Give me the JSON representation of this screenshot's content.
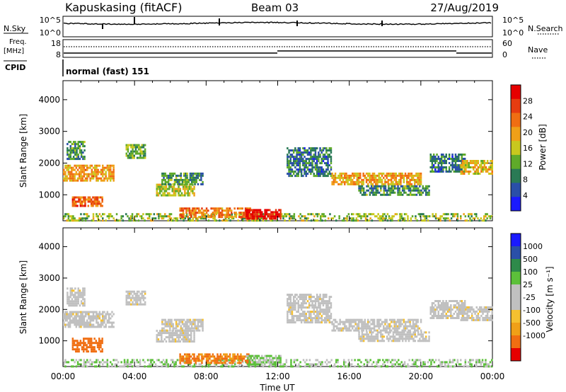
{
  "header": {
    "station": "Kapuskasing (fitACF)",
    "beam": "Beam 03",
    "date": "27/Aug/2019"
  },
  "strips": {
    "nsky_label": "N.Sky",
    "nsky_ticks": [
      "10^5",
      "10^0"
    ],
    "nsearch_label": "N.Search",
    "nsearch_ticks": [
      "10^5",
      "10^0"
    ],
    "freq_label_1": "Freq.",
    "freq_label_2": "[MHz]",
    "freq_ticks": [
      "18",
      "8"
    ],
    "nave_label": "Nave",
    "nave_ticks": [
      "60",
      "0"
    ],
    "cpid_label": "CPID",
    "cpid_text": "normal (fast) 151"
  },
  "colors": {
    "power_scale": [
      "#1a1aff",
      "#2a4fa8",
      "#2a7a55",
      "#5faa2a",
      "#c8c81e",
      "#f0a018",
      "#f06e12",
      "#e63c10",
      "#e60000"
    ],
    "velocity_scale": [
      "#e60000",
      "#f06e12",
      "#f0a018",
      "#f5c030",
      "#c0c0c0",
      "#c0c0c0",
      "#5cc03a",
      "#2e8a4a",
      "#2a4fa8",
      "#1a1aff"
    ]
  },
  "chart_data": [
    {
      "type": "heatmap",
      "name": "power",
      "title": "",
      "xlabel": "",
      "ylabel": "Slant Range [km]",
      "xticks": [
        "00:00",
        "04:00",
        "08:00",
        "12:00",
        "16:00",
        "20:00",
        "00:00"
      ],
      "xlim_hours": [
        0,
        24
      ],
      "ylim_km": [
        180,
        4600
      ],
      "yticks": [
        "1000",
        "2000",
        "3000",
        "4000"
      ],
      "colorbar_label": "Power [dB]",
      "colorbar_ticks": [
        "4",
        "8",
        "12",
        "16",
        "20",
        "24",
        "28"
      ],
      "colorbar_range": [
        0,
        32
      ],
      "regions": [
        {
          "t0": 0.0,
          "t1": 2.8,
          "r0": 1450,
          "r1": 1950,
          "value": 20
        },
        {
          "t0": 0.5,
          "t1": 2.2,
          "r0": 650,
          "r1": 950,
          "value": 24
        },
        {
          "t0": 0.2,
          "t1": 1.2,
          "r0": 2100,
          "r1": 2700,
          "value": 10
        },
        {
          "t0": 3.5,
          "t1": 4.6,
          "r0": 2150,
          "r1": 2600,
          "value": 12
        },
        {
          "t0": 5.2,
          "t1": 7.3,
          "r0": 950,
          "r1": 1350,
          "value": 16
        },
        {
          "t0": 5.5,
          "t1": 7.8,
          "r0": 1350,
          "r1": 1700,
          "value": 10
        },
        {
          "t0": 0.0,
          "t1": 24.0,
          "r0": 200,
          "r1": 420,
          "value": 14
        },
        {
          "t0": 6.5,
          "t1": 10.5,
          "r0": 300,
          "r1": 600,
          "value": 22
        },
        {
          "t0": 10.2,
          "t1": 12.2,
          "r0": 250,
          "r1": 550,
          "value": 30
        },
        {
          "t0": 12.5,
          "t1": 15.0,
          "r0": 1600,
          "r1": 2500,
          "value": 8
        },
        {
          "t0": 15.0,
          "t1": 20.0,
          "r0": 1350,
          "r1": 1700,
          "value": 20
        },
        {
          "t0": 16.5,
          "t1": 20.5,
          "r0": 1000,
          "r1": 1300,
          "value": 10
        },
        {
          "t0": 20.5,
          "t1": 22.5,
          "r0": 1700,
          "r1": 2300,
          "value": 8
        },
        {
          "t0": 22.2,
          "t1": 24.0,
          "r0": 1650,
          "r1": 2100,
          "value": 18
        }
      ]
    },
    {
      "type": "heatmap",
      "name": "velocity",
      "title": "",
      "xlabel": "Time UT",
      "ylabel": "Slant Range [km]",
      "xticks": [
        "00:00",
        "04:00",
        "08:00",
        "12:00",
        "16:00",
        "20:00",
        "00:00"
      ],
      "xlim_hours": [
        0,
        24
      ],
      "ylim_km": [
        180,
        4600
      ],
      "yticks": [
        "1000",
        "2000",
        "3000",
        "4000"
      ],
      "colorbar_label": "Velocity [m s⁻¹]",
      "colorbar_ticks": [
        "1000",
        "500",
        "100",
        "25",
        "-25",
        "-100",
        "-500",
        "-1000"
      ],
      "regions": [
        {
          "t0": 0.0,
          "t1": 2.8,
          "r0": 1450,
          "r1": 1950,
          "value": 0
        },
        {
          "t0": 0.5,
          "t1": 2.2,
          "r0": 650,
          "r1": 1100,
          "value": -300
        },
        {
          "t0": 0.2,
          "t1": 1.2,
          "r0": 2100,
          "r1": 2700,
          "value": 0
        },
        {
          "t0": 3.5,
          "t1": 4.6,
          "r0": 2150,
          "r1": 2600,
          "value": 0
        },
        {
          "t0": 5.2,
          "t1": 7.3,
          "r0": 950,
          "r1": 1350,
          "value": 0
        },
        {
          "t0": 5.5,
          "t1": 7.8,
          "r0": 1350,
          "r1": 1700,
          "value": 0
        },
        {
          "t0": 0.0,
          "t1": 24.0,
          "r0": 200,
          "r1": 420,
          "value": 60
        },
        {
          "t0": 6.5,
          "t1": 10.5,
          "r0": 300,
          "r1": 600,
          "value": -110
        },
        {
          "t0": 10.2,
          "t1": 12.2,
          "r0": 250,
          "r1": 550,
          "value": 60
        },
        {
          "t0": 12.5,
          "t1": 15.0,
          "r0": 1600,
          "r1": 2500,
          "value": 0
        },
        {
          "t0": 15.0,
          "t1": 20.0,
          "r0": 1350,
          "r1": 1700,
          "value": 0
        },
        {
          "t0": 16.5,
          "t1": 20.5,
          "r0": 1000,
          "r1": 1300,
          "value": 0
        },
        {
          "t0": 20.5,
          "t1": 22.5,
          "r0": 1700,
          "r1": 2300,
          "value": 0
        },
        {
          "t0": 22.2,
          "t1": 24.0,
          "r0": 1650,
          "r1": 2100,
          "value": 0
        }
      ]
    }
  ]
}
